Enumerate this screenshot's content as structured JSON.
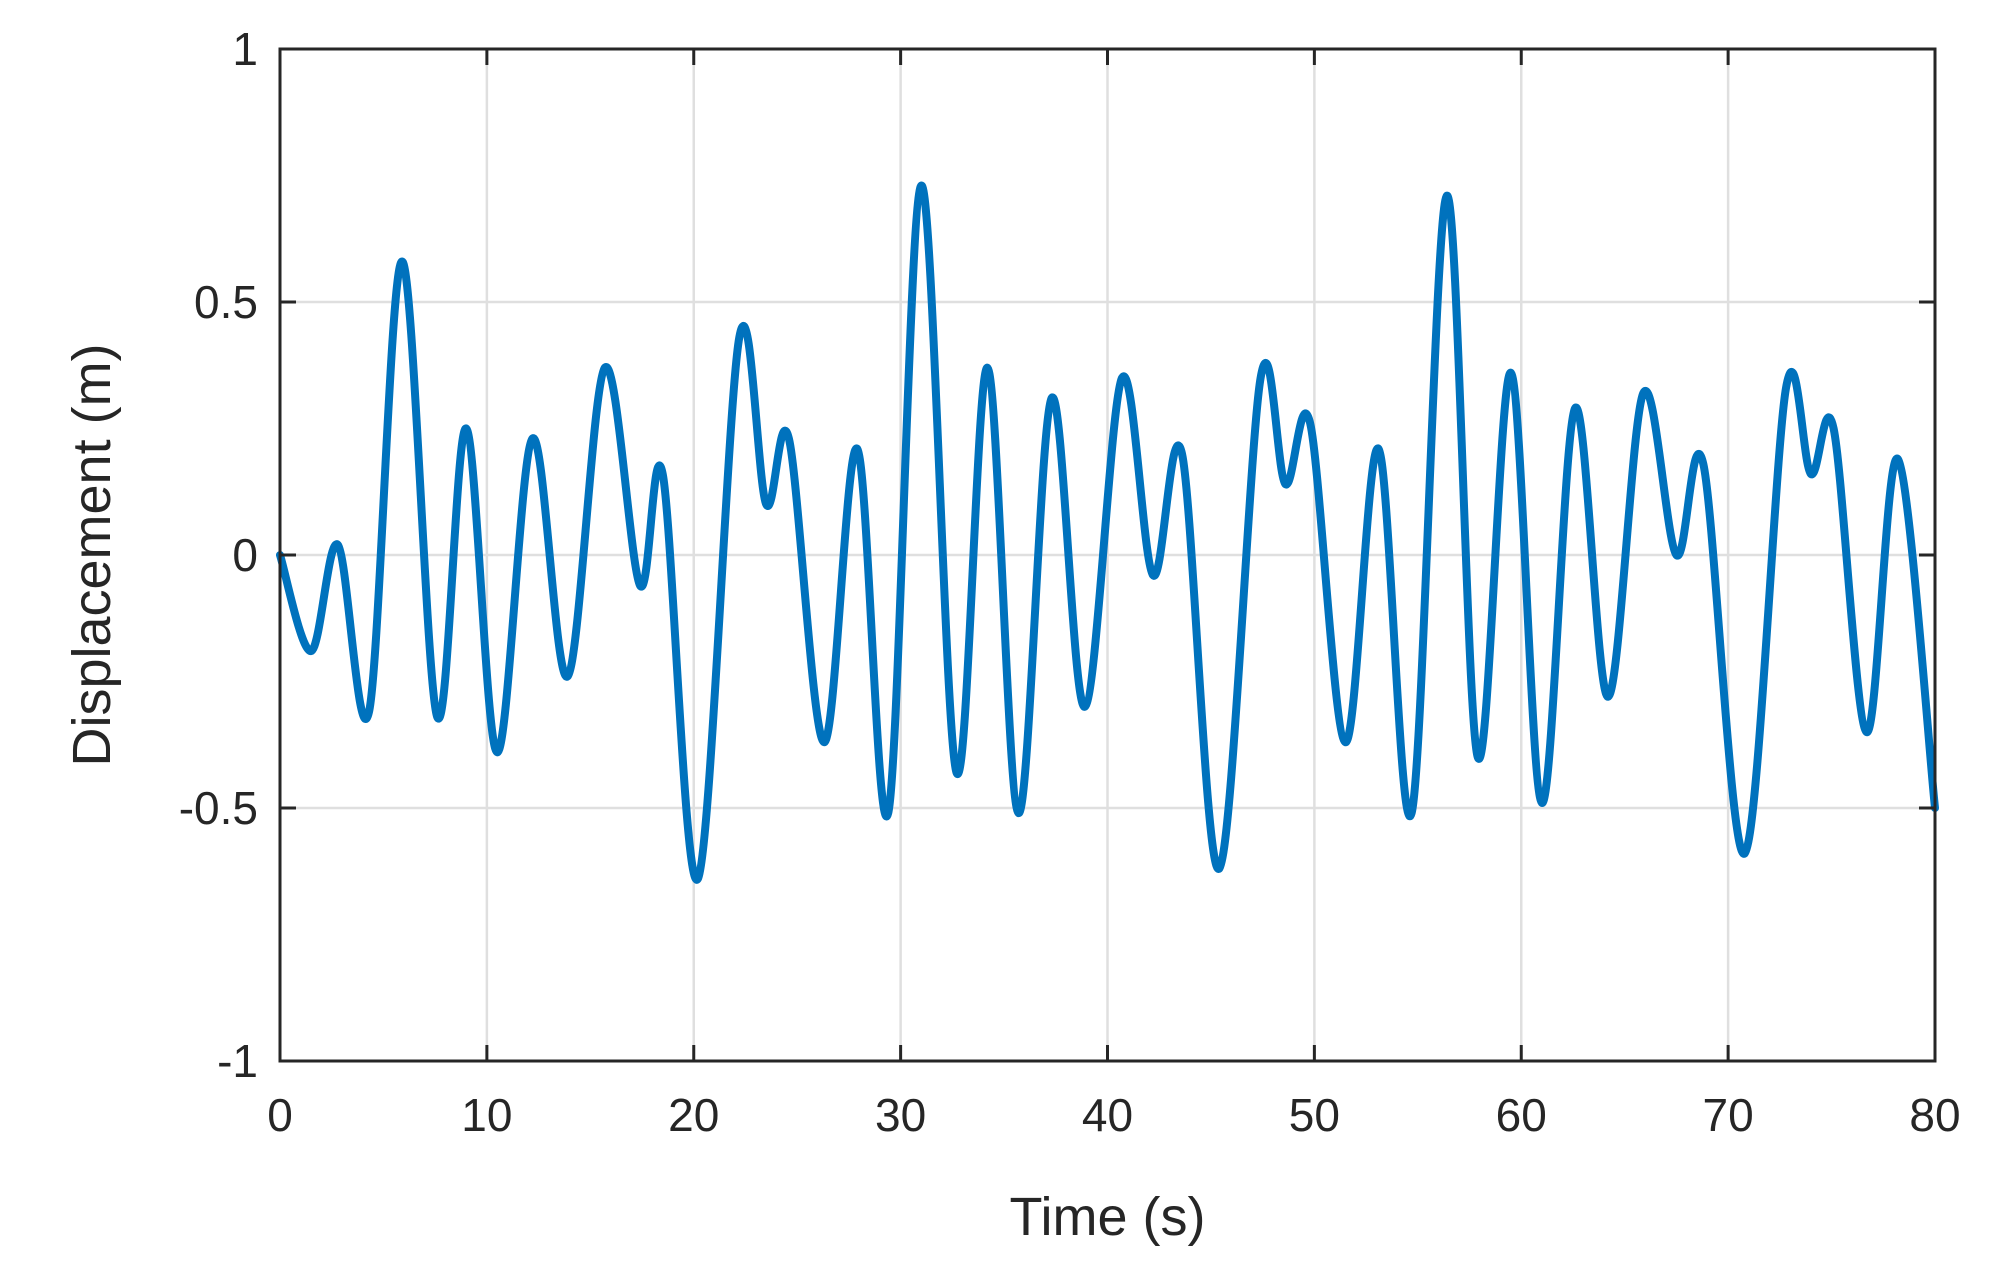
{
  "chart_data": {
    "type": "line",
    "xlabel": "Time (s)",
    "ylabel": "Displacement (m)",
    "xlim": [
      0,
      80
    ],
    "ylim": [
      -1,
      1
    ],
    "xticks": [
      0,
      10,
      20,
      30,
      40,
      50,
      60,
      70,
      80
    ],
    "yticks": [
      -1,
      -0.5,
      0,
      0.5,
      1
    ],
    "xtick_labels": [
      "0",
      "10",
      "20",
      "30",
      "40",
      "50",
      "60",
      "70",
      "80"
    ],
    "ytick_labels": [
      "-1",
      "-0.5",
      "0",
      "0.5",
      "1"
    ],
    "grid": true,
    "series": [
      {
        "color": "#0072BD",
        "x": [
          0,
          1.5,
          2.8,
          4.3,
          5.9,
          7.6,
          9.0,
          10.5,
          12.2,
          13.9,
          15.7,
          17.4,
          18.5,
          20.2,
          22.2,
          23.5,
          24.6,
          26.3,
          27.9,
          29.4,
          31.0,
          32.7,
          34.2,
          35.7,
          37.3,
          38.9,
          40.7,
          42.2,
          43.6,
          45.4,
          47.4,
          48.6,
          49.8,
          51.5,
          53.1,
          54.7,
          56.4,
          57.9,
          59.5,
          61.0,
          62.6,
          64.2,
          65.9,
          67.5,
          68.8,
          70.8,
          72.8,
          74.0,
          75.1,
          76.7,
          78.2,
          80.0
        ],
        "y": [
          0,
          -0.19,
          0.02,
          -0.31,
          0.58,
          -0.32,
          0.25,
          -0.39,
          0.23,
          -0.24,
          0.37,
          -0.06,
          0.16,
          -0.64,
          0.43,
          0.1,
          0.23,
          -0.37,
          0.21,
          -0.51,
          0.73,
          -0.43,
          0.37,
          -0.51,
          0.31,
          -0.3,
          0.35,
          -0.04,
          0.2,
          -0.62,
          0.35,
          0.14,
          0.26,
          -0.37,
          0.21,
          -0.51,
          0.71,
          -0.4,
          0.36,
          -0.49,
          0.29,
          -0.28,
          0.32,
          0.0,
          0.18,
          -0.59,
          0.33,
          0.16,
          0.25,
          -0.35,
          0.19,
          -0.5
        ]
      }
    ]
  }
}
